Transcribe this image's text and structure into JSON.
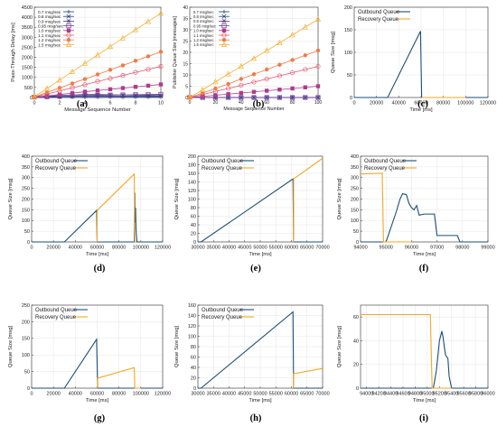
{
  "chart_data": [
    {
      "id": "a",
      "panel_label": "(a)",
      "type": "line",
      "xlabel": "Message Sequence Number",
      "ylabel": "Pass-Through Delay [ms]",
      "xlim": [
        0,
        10
      ],
      "ylim": [
        0,
        4500
      ],
      "xticks": [
        0,
        2,
        4,
        6,
        8,
        10
      ],
      "yticks": [
        0,
        500,
        1000,
        1500,
        2000,
        2500,
        3000,
        3500,
        4000,
        4500
      ],
      "legend_position": "top-left",
      "x": [
        0,
        1,
        2,
        3,
        4,
        5,
        6,
        7,
        8,
        9,
        10
      ],
      "series": [
        {
          "name": "0.7 msg/sec",
          "color": "#1f3b73",
          "marker": "plus",
          "values": [
            5,
            8,
            10,
            12,
            13,
            15,
            16,
            17,
            18,
            19,
            20
          ]
        },
        {
          "name": "0.8 msg/sec",
          "color": "#2c3e7c",
          "marker": "x",
          "values": [
            10,
            30,
            50,
            60,
            70,
            70,
            70,
            70,
            70,
            70,
            70
          ]
        },
        {
          "name": "0.9 msg/sec",
          "color": "#4d3a87",
          "marker": "star",
          "values": [
            20,
            60,
            100,
            130,
            150,
            150,
            140,
            130,
            120,
            110,
            100
          ]
        },
        {
          "name": "0.95 msg/sec",
          "color": "#6b3d8f",
          "marker": "square",
          "values": [
            20,
            40,
            60,
            80,
            100,
            110,
            120,
            130,
            140,
            150,
            160
          ]
        },
        {
          "name": "1.0 msg/sec",
          "color": "#b03a8c",
          "marker": "fsquare",
          "values": [
            20,
            80,
            150,
            220,
            290,
            350,
            410,
            470,
            530,
            590,
            650
          ]
        },
        {
          "name": "1.1 msg/sec",
          "color": "#e8546d",
          "marker": "circle",
          "values": [
            30,
            170,
            330,
            480,
            640,
            800,
            950,
            1100,
            1250,
            1400,
            1550
          ]
        },
        {
          "name": "1.2 msg/sec",
          "color": "#f07b48",
          "marker": "fcircle",
          "values": [
            30,
            250,
            480,
            700,
            920,
            1150,
            1380,
            1600,
            1830,
            2050,
            2280
          ]
        },
        {
          "name": "1.5 msg/sec",
          "color": "#f5b133",
          "marker": "triangle",
          "values": [
            40,
            450,
            870,
            1290,
            1700,
            2120,
            2540,
            2960,
            3380,
            3790,
            4200
          ]
        }
      ]
    },
    {
      "id": "b",
      "panel_label": "(b)",
      "type": "line",
      "xlabel": "Message Sequence Number",
      "ylabel": "Publisher Queue Size [messages]",
      "xlim": [
        0,
        100
      ],
      "ylim": [
        0,
        40
      ],
      "xticks": [
        0,
        20,
        40,
        60,
        80,
        100
      ],
      "yticks": [
        0,
        5,
        10,
        15,
        20,
        25,
        30,
        35,
        40
      ],
      "legend_position": "top-left",
      "x": [
        0,
        10,
        20,
        30,
        40,
        50,
        60,
        70,
        80,
        90,
        100
      ],
      "series": [
        {
          "name": "0.7 msg/sec",
          "color": "#1f3b73",
          "marker": "plus",
          "values": [
            0,
            0,
            0,
            0,
            0,
            0,
            0,
            0,
            0,
            0,
            0
          ]
        },
        {
          "name": "0.8 msg/sec",
          "color": "#2c3e7c",
          "marker": "x",
          "values": [
            0,
            0,
            0,
            0,
            0,
            0,
            0,
            0,
            0,
            0,
            0
          ]
        },
        {
          "name": "0.9 msg/sec",
          "color": "#4d3a87",
          "marker": "star",
          "values": [
            0,
            0,
            0,
            0,
            0,
            0,
            0,
            0,
            0,
            0,
            0
          ]
        },
        {
          "name": "0.95 msg/sec",
          "color": "#6b3d8f",
          "marker": "square",
          "values": [
            0,
            0,
            0,
            0,
            0,
            0,
            0,
            0,
            0,
            0,
            0
          ]
        },
        {
          "name": "1.0 msg/sec",
          "color": "#b03a8c",
          "marker": "fsquare",
          "values": [
            0,
            0.5,
            1,
            1.5,
            2,
            2.5,
            3,
            3.5,
            4,
            4.5,
            5
          ]
        },
        {
          "name": "1.1 msg/sec",
          "color": "#e8546d",
          "marker": "circle",
          "values": [
            0,
            1.3,
            2.7,
            4,
            5.4,
            6.8,
            8.2,
            9.6,
            11,
            12.4,
            13.8
          ]
        },
        {
          "name": "1.2 msg/sec",
          "color": "#f07b48",
          "marker": "fcircle",
          "values": [
            0,
            2,
            4,
            6,
            8.2,
            10.3,
            12.4,
            14.5,
            16.6,
            18.7,
            20.8
          ]
        },
        {
          "name": "1.5 msg/sec",
          "color": "#f5b133",
          "marker": "triangle",
          "values": [
            0,
            3.4,
            6.9,
            10.4,
            13.8,
            17.3,
            20.8,
            24.2,
            27.7,
            31.2,
            34.6
          ]
        }
      ]
    },
    {
      "id": "c",
      "panel_label": "(c)",
      "type": "line",
      "xlabel": "Time [ms]",
      "ylabel": "Queue Size [msg]",
      "xlim": [
        0,
        120000
      ],
      "ylim": [
        0,
        200
      ],
      "xticks": [
        0,
        20000,
        40000,
        60000,
        80000,
        100000,
        120000
      ],
      "yticks": [
        0,
        50,
        100,
        150,
        200
      ],
      "legend_position": "top-left",
      "series": [
        {
          "name": "Outbound Queue",
          "color": "#1a4d7a",
          "points": [
            [
              0,
              0
            ],
            [
              30000,
              0
            ],
            [
              59500,
              147
            ],
            [
              60500,
              0
            ],
            [
              120000,
              0
            ]
          ]
        },
        {
          "name": "Recovery Queue",
          "color": "#f5a623",
          "points": [
            [
              60500,
              0
            ],
            [
              100000,
              0
            ]
          ]
        }
      ]
    },
    {
      "id": "d",
      "panel_label": "(d)",
      "type": "line",
      "xlabel": "Time [ms]",
      "ylabel": "Queue Size [msg]",
      "xlim": [
        0,
        120000
      ],
      "ylim": [
        0,
        400
      ],
      "xticks": [
        0,
        20000,
        40000,
        60000,
        80000,
        100000,
        120000
      ],
      "yticks": [
        0,
        50,
        100,
        150,
        200,
        250,
        300,
        350,
        400
      ],
      "legend_position": "top-left",
      "series": [
        {
          "name": "Outbound Queue",
          "color": "#1a4d7a",
          "points": [
            [
              0,
              0
            ],
            [
              30000,
              0
            ],
            [
              59500,
              147
            ],
            [
              60000,
              0
            ],
            [
              94000,
              0
            ],
            [
              94500,
              230
            ],
            [
              94800,
              90
            ],
            [
              95200,
              160
            ],
            [
              95600,
              60
            ],
            [
              96000,
              30
            ],
            [
              96500,
              0
            ],
            [
              120000,
              0
            ]
          ]
        },
        {
          "name": "Recovery Queue",
          "color": "#f5a623",
          "points": [
            [
              60000,
              0
            ],
            [
              60000,
              147
            ],
            [
              94000,
              317
            ],
            [
              94500,
              0
            ],
            [
              96000,
              0
            ]
          ]
        }
      ]
    },
    {
      "id": "e",
      "panel_label": "(e)",
      "type": "line",
      "xlabel": "Time [ms]",
      "ylabel": "Queue Size [msg]",
      "xlim": [
        30000,
        70000
      ],
      "ylim": [
        0,
        200
      ],
      "xticks": [
        30000,
        35000,
        40000,
        45000,
        50000,
        55000,
        60000,
        65000,
        70000
      ],
      "yticks": [
        0,
        20,
        40,
        60,
        80,
        100,
        120,
        140,
        160,
        180,
        200
      ],
      "legend_position": "top-left",
      "series": [
        {
          "name": "Outbound Queue",
          "color": "#1a4d7a",
          "points": [
            [
              30000,
              0
            ],
            [
              31000,
              0
            ],
            [
              60500,
              147
            ],
            [
              60700,
              0
            ],
            [
              70000,
              0
            ]
          ]
        },
        {
          "name": "Recovery Queue",
          "color": "#f5a623",
          "points": [
            [
              60700,
              0
            ],
            [
              60700,
              147
            ],
            [
              70000,
              195
            ]
          ]
        }
      ]
    },
    {
      "id": "f",
      "panel_label": "(f)",
      "type": "line",
      "xlabel": "Time [ms]",
      "ylabel": "Queue Size [msg]",
      "xlim": [
        94000,
        99000
      ],
      "ylim": [
        0,
        400
      ],
      "xticks": [
        94000,
        95000,
        96000,
        97000,
        98000,
        99000
      ],
      "yticks": [
        0,
        50,
        100,
        150,
        200,
        250,
        300,
        350,
        400
      ],
      "legend_position": "top-left",
      "series": [
        {
          "name": "Outbound Queue",
          "color": "#1a4d7a",
          "points": [
            [
              94000,
              0
            ],
            [
              95000,
              0
            ],
            [
              95200,
              70
            ],
            [
              95400,
              140
            ],
            [
              95550,
              200
            ],
            [
              95650,
              225
            ],
            [
              95800,
              220
            ],
            [
              95900,
              180
            ],
            [
              96000,
              160
            ],
            [
              96100,
              150
            ],
            [
              96200,
              170
            ],
            [
              96300,
              125
            ],
            [
              96500,
              130
            ],
            [
              96900,
              130
            ],
            [
              97000,
              30
            ],
            [
              97800,
              30
            ],
            [
              97900,
              0
            ],
            [
              99000,
              0
            ]
          ]
        },
        {
          "name": "Recovery Queue",
          "color": "#f5a623",
          "points": [
            [
              94000,
              317
            ],
            [
              94850,
              320
            ],
            [
              94900,
              0
            ],
            [
              96000,
              0
            ]
          ]
        }
      ]
    },
    {
      "id": "g",
      "panel_label": "(g)",
      "type": "line",
      "xlabel": "Time [ms]",
      "ylabel": "Queue Size [msg]",
      "xlim": [
        0,
        120000
      ],
      "ylim": [
        0,
        250
      ],
      "xticks": [
        0,
        20000,
        40000,
        60000,
        80000,
        100000,
        120000
      ],
      "yticks": [
        0,
        50,
        100,
        150,
        200,
        250
      ],
      "legend_position": "top-left",
      "series": [
        {
          "name": "Outbound Queue",
          "color": "#1a4d7a",
          "points": [
            [
              0,
              0
            ],
            [
              30000,
              0
            ],
            [
              59500,
              147
            ],
            [
              60500,
              0
            ],
            [
              120000,
              0
            ]
          ]
        },
        {
          "name": "Recovery Queue",
          "color": "#f5a623",
          "points": [
            [
              60500,
              0
            ],
            [
              60500,
              30
            ],
            [
              94000,
              62
            ],
            [
              94500,
              0
            ],
            [
              100000,
              0
            ]
          ]
        }
      ]
    },
    {
      "id": "h",
      "panel_label": "(h)",
      "type": "line",
      "xlabel": "Time [ms]",
      "ylabel": "Queue Size [msg]",
      "xlim": [
        30000,
        70000
      ],
      "ylim": [
        0,
        160
      ],
      "xticks": [
        30000,
        35000,
        40000,
        45000,
        50000,
        55000,
        60000,
        65000,
        70000
      ],
      "yticks": [
        0,
        20,
        40,
        60,
        80,
        100,
        120,
        140,
        160
      ],
      "legend_position": "top-left",
      "series": [
        {
          "name": "Outbound Queue",
          "color": "#1a4d7a",
          "points": [
            [
              30000,
              0
            ],
            [
              31000,
              0
            ],
            [
              60500,
              147
            ],
            [
              60700,
              0
            ],
            [
              70000,
              0
            ]
          ]
        },
        {
          "name": "Recovery Queue",
          "color": "#f5a623",
          "points": [
            [
              60700,
              0
            ],
            [
              60700,
              28
            ],
            [
              70000,
              38
            ]
          ]
        }
      ]
    },
    {
      "id": "i",
      "panel_label": "(i)",
      "type": "line",
      "xlabel": "Time [ms]",
      "ylabel": "Queue Size [msg]",
      "xlim": [
        93900,
        96000
      ],
      "ylim": [
        0,
        70
      ],
      "xticks": [
        94000,
        94200,
        94400,
        94600,
        94800,
        95000,
        95200,
        95400,
        95600,
        95800,
        96000
      ],
      "yticks": [
        0,
        20,
        40,
        60
      ],
      "legend_position": "none",
      "series": [
        {
          "name": "Outbound Queue",
          "color": "#1a4d7a",
          "points": [
            [
              93900,
              0
            ],
            [
              95100,
              0
            ],
            [
              95150,
              15
            ],
            [
              95200,
              40
            ],
            [
              95240,
              48
            ],
            [
              95260,
              43
            ],
            [
              95280,
              35
            ],
            [
              95300,
              28
            ],
            [
              95340,
              25
            ],
            [
              95360,
              10
            ],
            [
              95400,
              0
            ],
            [
              96000,
              0
            ]
          ]
        },
        {
          "name": "Recovery Queue",
          "color": "#f5a623",
          "points": [
            [
              93900,
              62
            ],
            [
              95050,
              62
            ],
            [
              95080,
              0
            ],
            [
              95400,
              0
            ]
          ]
        }
      ]
    }
  ]
}
